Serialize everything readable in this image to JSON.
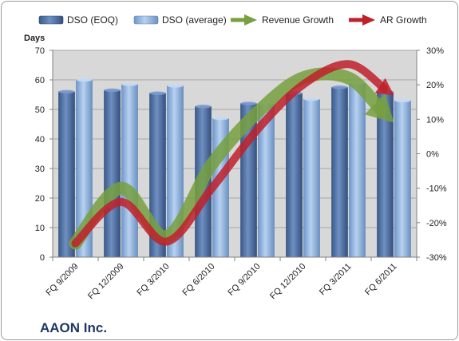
{
  "chart_data": {
    "type": "bar",
    "title": "",
    "company_label": "AAON Inc.",
    "ylabel": "Days",
    "ylim": [
      0,
      70
    ],
    "y_ticks": [
      "0",
      "10",
      "20",
      "30",
      "40",
      "50",
      "60",
      "70"
    ],
    "y2lim": [
      -30,
      30
    ],
    "y2_ticks": [
      "-30%",
      "-20%",
      "-10%",
      "0%",
      "10%",
      "20%",
      "30%"
    ],
    "categories": [
      "FQ 9/2009",
      "FQ 12/2009",
      "FQ 3/2010",
      "FQ 6/2010",
      "FQ 9/2010",
      "FQ 12/2010",
      "FQ 3/2011",
      "FQ 6/2011"
    ],
    "series": [
      {
        "name": "DSO (EOQ)",
        "kind": "bar",
        "axis": "left",
        "color": "#4f6fa0",
        "values": [
          56,
          56.5,
          55.5,
          51,
          52,
          55.5,
          57.5,
          56
        ]
      },
      {
        "name": "DSO (average)",
        "kind": "bar",
        "axis": "left",
        "color": "#8db3e2",
        "values": [
          60,
          58.5,
          58,
          47,
          52,
          53.5,
          59,
          53
        ]
      },
      {
        "name": "Revenue Growth",
        "kind": "arrow",
        "axis": "right",
        "color": "#77a040",
        "values": [
          -26,
          -10,
          -24,
          -3,
          12,
          22,
          22,
          9
        ]
      },
      {
        "name": "AR Growth",
        "kind": "arrow",
        "axis": "right",
        "color": "#c0202a",
        "values": [
          -26,
          -14,
          -25.5,
          -10,
          7,
          20,
          26,
          17
        ]
      }
    ],
    "grid": true,
    "legend_position": "top"
  }
}
